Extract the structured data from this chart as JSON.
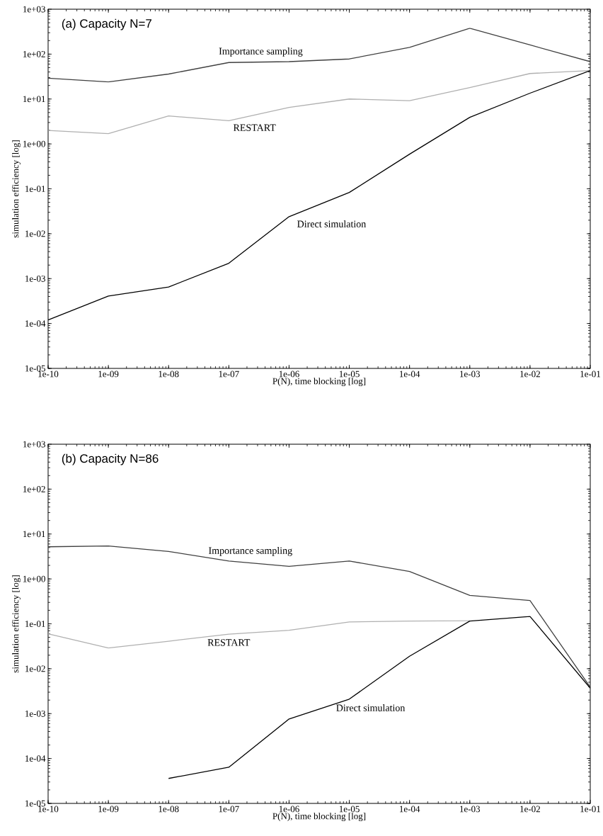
{
  "chart_data": [
    {
      "type": "line",
      "title": "(a) Capacity N=7",
      "xlabel": "P(N), time blocking [log]",
      "ylabel": "simulation efficiency [log]",
      "log": "xy",
      "grid": false,
      "legend": false,
      "marker": "none",
      "line_style": "solid",
      "x": [
        1e-10,
        1e-09,
        1e-08,
        1e-07,
        1e-06,
        1e-05,
        0.0001,
        0.001,
        0.01,
        0.1
      ],
      "xlim": [
        1e-10,
        0.1
      ],
      "ylim": [
        1e-05,
        1000.0
      ],
      "xticks": [
        {
          "value": 1e-10,
          "label": "1e-10"
        },
        {
          "value": 1e-09,
          "label": "1e-09"
        },
        {
          "value": 1e-08,
          "label": "1e-08"
        },
        {
          "value": 1e-07,
          "label": "1e-07"
        },
        {
          "value": 1e-06,
          "label": "1e-06"
        },
        {
          "value": 1e-05,
          "label": "1e-05"
        },
        {
          "value": 0.0001,
          "label": "1e-04"
        },
        {
          "value": 0.001,
          "label": "1e-03"
        },
        {
          "value": 0.01,
          "label": "1e-02"
        },
        {
          "value": 0.1,
          "label": "1e-01"
        }
      ],
      "yticks": [
        {
          "value": 1e-05,
          "label": "1e-05"
        },
        {
          "value": 0.0001,
          "label": "1e-04"
        },
        {
          "value": 0.001,
          "label": "1e-03"
        },
        {
          "value": 0.01,
          "label": "1e-02"
        },
        {
          "value": 0.1,
          "label": "1e-01"
        },
        {
          "value": 1,
          "label": "1e+00"
        },
        {
          "value": 10,
          "label": "1e+01"
        },
        {
          "value": 100,
          "label": "1e+02"
        },
        {
          "value": 1000,
          "label": "1e+03"
        }
      ],
      "series": [
        {
          "name": "Importance sampling",
          "color": "#404040",
          "values": [
            29,
            24,
            36,
            65,
            68,
            78,
            141,
            377,
            160,
            68
          ]
        },
        {
          "name": "RESTART",
          "color": "#b0b0b0",
          "values": [
            2.0,
            1.7,
            4.2,
            3.3,
            6.5,
            10,
            9.2,
            18,
            37,
            43
          ]
        },
        {
          "name": "Direct simulation",
          "color": "#000000",
          "values": [
            0.00012,
            0.00041,
            0.00065,
            0.0022,
            0.024,
            0.083,
            0.59,
            3.9,
            13.5,
            43
          ]
        }
      ]
    },
    {
      "type": "line",
      "title": "(b) Capacity N=86",
      "xlabel": "P(N), time blocking [log]",
      "ylabel": "simulation efficiency [log]",
      "log": "xy",
      "grid": false,
      "legend": false,
      "marker": "none",
      "line_style": "solid",
      "x": [
        1e-10,
        1e-09,
        1e-08,
        1e-07,
        1e-06,
        1e-05,
        0.0001,
        0.001,
        0.01,
        0.1
      ],
      "xlim": [
        1e-10,
        0.1
      ],
      "ylim": [
        1e-05,
        1000.0
      ],
      "xticks": [
        {
          "value": 1e-10,
          "label": "1e-10"
        },
        {
          "value": 1e-09,
          "label": "1e-09"
        },
        {
          "value": 1e-08,
          "label": "1e-08"
        },
        {
          "value": 1e-07,
          "label": "1e-07"
        },
        {
          "value": 1e-06,
          "label": "1e-06"
        },
        {
          "value": 1e-05,
          "label": "1e-05"
        },
        {
          "value": 0.0001,
          "label": "1e-04"
        },
        {
          "value": 0.001,
          "label": "1e-03"
        },
        {
          "value": 0.01,
          "label": "1e-02"
        },
        {
          "value": 0.1,
          "label": "1e-01"
        }
      ],
      "yticks": [
        {
          "value": 1e-05,
          "label": "1e-05"
        },
        {
          "value": 0.0001,
          "label": "1e-04"
        },
        {
          "value": 0.001,
          "label": "1e-03"
        },
        {
          "value": 0.01,
          "label": "1e-02"
        },
        {
          "value": 0.1,
          "label": "1e-01"
        },
        {
          "value": 1,
          "label": "1e+00"
        },
        {
          "value": 10,
          "label": "1e+01"
        },
        {
          "value": 100,
          "label": "1e+02"
        },
        {
          "value": 1000,
          "label": "1e+03"
        }
      ],
      "series": [
        {
          "name": "Importance sampling",
          "color": "#404040",
          "values": [
            5.2,
            5.4,
            4.1,
            2.5,
            1.9,
            2.5,
            1.46,
            0.43,
            0.33,
            0.0039
          ]
        },
        {
          "name": "RESTART",
          "color": "#b0b0b0",
          "values": [
            0.06,
            0.029,
            0.041,
            0.059,
            0.072,
            0.11,
            0.115,
            0.117,
            null,
            null
          ]
        },
        {
          "name": "Direct simulation",
          "color": "#000000",
          "values": [
            null,
            null,
            3.6e-05,
            6.4e-05,
            0.00076,
            0.0021,
            0.019,
            0.115,
            0.146,
            0.0037
          ]
        }
      ]
    }
  ]
}
